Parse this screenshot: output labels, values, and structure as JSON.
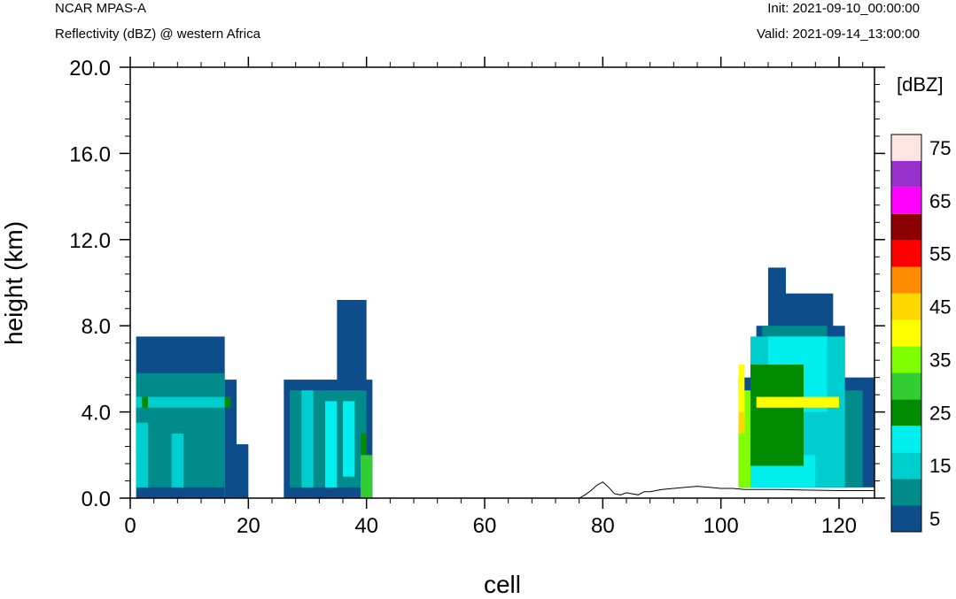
{
  "header": {
    "model": "NCAR MPAS-A",
    "field": "Reflectivity (dBZ) @ western Africa",
    "init": "Init: 2021-09-10_00:00:00",
    "valid": "Valid: 2021-09-14_13:00:00"
  },
  "chart_data": {
    "type": "heatmap",
    "xlabel": "cell",
    "ylabel": "height (km)",
    "xlim": [
      0,
      126
    ],
    "ylim": [
      0,
      20
    ],
    "x_ticks": [
      0,
      20,
      40,
      60,
      80,
      100,
      120
    ],
    "x_tick_labels": [
      "0",
      "20",
      "40",
      "60",
      "80",
      "100",
      "120"
    ],
    "y_ticks": [
      0,
      4,
      8,
      12,
      16,
      20
    ],
    "y_tick_labels": [
      "0.0",
      "4.0",
      "8.0",
      "12.0",
      "16.0",
      "20.0"
    ],
    "colorbar": {
      "unit_label": "[dBZ]",
      "levels": [
        5,
        10,
        15,
        20,
        25,
        30,
        35,
        40,
        45,
        50,
        55,
        60,
        65,
        70,
        75
      ],
      "tick_labels": [
        "5",
        "15",
        "25",
        "35",
        "45",
        "55",
        "65",
        "75"
      ],
      "colors": [
        "#0d4d8c",
        "#008b8b",
        "#00cdcd",
        "#00eeee",
        "#008b00",
        "#32cd32",
        "#7fff00",
        "#ffff00",
        "#ffd700",
        "#ff8c00",
        "#ff0000",
        "#8b0000",
        "#ff00ff",
        "#9932cc",
        "#ffe4e1"
      ]
    },
    "terrain": {
      "x": [
        0,
        76,
        77,
        78,
        79,
        80,
        81,
        82,
        83,
        84,
        85,
        86,
        87,
        88,
        89,
        90,
        92,
        94,
        96,
        98,
        100,
        102,
        104,
        110,
        120,
        126
      ],
      "height_km": [
        0,
        0,
        0.15,
        0.35,
        0.6,
        0.75,
        0.5,
        0.2,
        0.15,
        0.25,
        0.2,
        0.15,
        0.3,
        0.3,
        0.35,
        0.4,
        0.45,
        0.5,
        0.55,
        0.5,
        0.45,
        0.45,
        0.4,
        0.4,
        0.35,
        0.35
      ]
    },
    "regions": [
      {
        "x": [
          1,
          16
        ],
        "y": [
          0,
          7.5
        ],
        "dbz": 5
      },
      {
        "x": [
          16,
          18
        ],
        "y": [
          0,
          5.5
        ],
        "dbz": 5
      },
      {
        "x": [
          18,
          20
        ],
        "y": [
          0,
          2.5
        ],
        "dbz": 5
      },
      {
        "x": [
          1,
          16
        ],
        "y": [
          0.5,
          5.8
        ],
        "dbz": 10
      },
      {
        "x": [
          1,
          14
        ],
        "y": [
          2,
          4.7
        ],
        "dbz": 10
      },
      {
        "x": [
          1,
          3
        ],
        "y": [
          0.5,
          3.5
        ],
        "dbz": 15
      },
      {
        "x": [
          7,
          9
        ],
        "y": [
          0.5,
          3
        ],
        "dbz": 15
      },
      {
        "x": [
          1,
          16
        ],
        "y": [
          4.2,
          4.7
        ],
        "dbz": 15
      },
      {
        "x": [
          2,
          3
        ],
        "y": [
          4.2,
          4.7
        ],
        "dbz": 25
      },
      {
        "x": [
          16,
          17
        ],
        "y": [
          4.2,
          4.7
        ],
        "dbz": 25
      },
      {
        "x": [
          26,
          41
        ],
        "y": [
          0,
          5.5
        ],
        "dbz": 5
      },
      {
        "x": [
          35,
          40
        ],
        "y": [
          5,
          9.2
        ],
        "dbz": 5
      },
      {
        "x": [
          27,
          40
        ],
        "y": [
          0.5,
          5
        ],
        "dbz": 10
      },
      {
        "x": [
          29,
          31
        ],
        "y": [
          0.5,
          5
        ],
        "dbz": 15
      },
      {
        "x": [
          33,
          35
        ],
        "y": [
          0.5,
          4.5
        ],
        "dbz": 20
      },
      {
        "x": [
          36,
          38
        ],
        "y": [
          1,
          4.5
        ],
        "dbz": 20
      },
      {
        "x": [
          39,
          40
        ],
        "y": [
          0.5,
          3
        ],
        "dbz": 25
      },
      {
        "x": [
          39,
          41
        ],
        "y": [
          0,
          2
        ],
        "dbz": 30
      },
      {
        "x": [
          103,
          126
        ],
        "y": [
          0.5,
          5.6
        ],
        "dbz": 5
      },
      {
        "x": [
          106,
          121
        ],
        "y": [
          0.5,
          8
        ],
        "dbz": 5
      },
      {
        "x": [
          108,
          119
        ],
        "y": [
          5,
          9.5
        ],
        "dbz": 5
      },
      {
        "x": [
          108,
          111
        ],
        "y": [
          8,
          10.7
        ],
        "dbz": 5
      },
      {
        "x": [
          104,
          124
        ],
        "y": [
          0.5,
          5
        ],
        "dbz": 10
      },
      {
        "x": [
          107,
          118
        ],
        "y": [
          2,
          8
        ],
        "dbz": 10
      },
      {
        "x": [
          105,
          121
        ],
        "y": [
          0.5,
          7.5
        ],
        "dbz": 15
      },
      {
        "x": [
          108,
          118
        ],
        "y": [
          4,
          7.5
        ],
        "dbz": 20
      },
      {
        "x": [
          104,
          116
        ],
        "y": [
          0.5,
          2
        ],
        "dbz": 20
      },
      {
        "x": [
          105,
          114
        ],
        "y": [
          1.5,
          6.2
        ],
        "dbz": 25
      },
      {
        "x": [
          103,
          105
        ],
        "y": [
          0.5,
          5
        ],
        "dbz": 35
      },
      {
        "x": [
          103,
          104
        ],
        "y": [
          3.5,
          6.2
        ],
        "dbz": 40
      },
      {
        "x": [
          103,
          104
        ],
        "y": [
          3,
          4
        ],
        "dbz": 45
      },
      {
        "x": [
          106,
          120
        ],
        "y": [
          4.2,
          4.7
        ],
        "dbz": 40
      }
    ]
  }
}
